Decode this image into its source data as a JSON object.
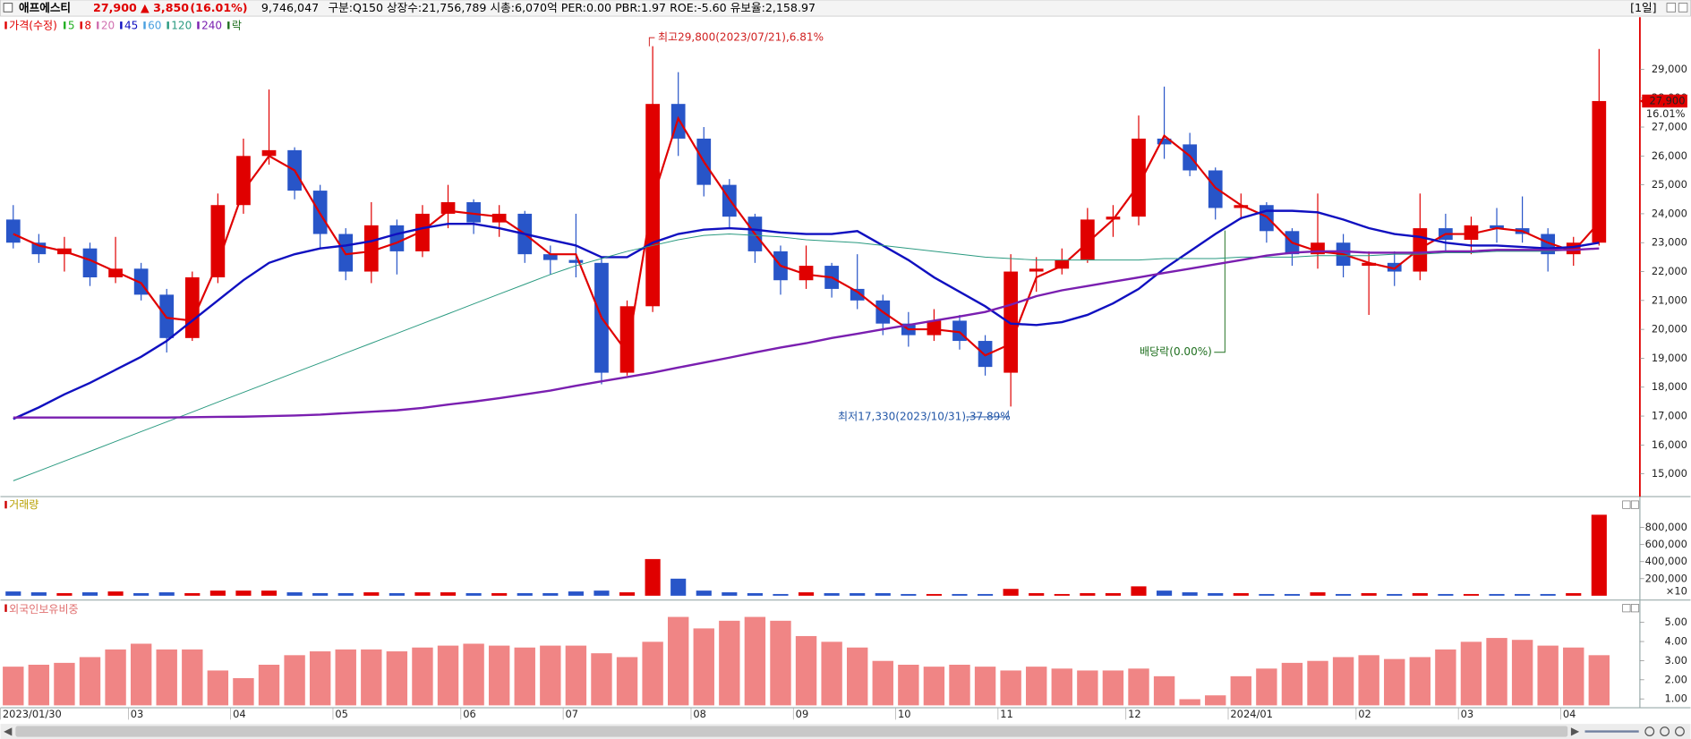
{
  "header": {
    "name": "애프에스티",
    "price": "27,900",
    "change": "▲ 3,850",
    "change_pct": "(16.01%)",
    "volume": "9,746,047",
    "info": "구분:Q150 상장수:21,756,789 시총:6,070억 PER:0.00 PBR:1.97 ROE:-5.60 유보율:2,158.97",
    "period": "[1일]"
  },
  "chart_data": {
    "type": "candlestick",
    "legend_title": "가격(수정)",
    "lock_label": "락",
    "up_color": "#e00000",
    "down_color": "#2855c8",
    "categories": [
      "2023/01/30",
      null,
      null,
      null,
      null,
      "03",
      null,
      null,
      null,
      "04",
      null,
      null,
      null,
      "05",
      null,
      null,
      null,
      null,
      "06",
      null,
      null,
      null,
      "07",
      null,
      null,
      null,
      null,
      "08",
      null,
      null,
      null,
      "09",
      null,
      null,
      null,
      "10",
      null,
      null,
      null,
      "11",
      null,
      null,
      null,
      null,
      "12",
      null,
      null,
      null,
      "2024/01",
      null,
      null,
      null,
      null,
      "02",
      null,
      null,
      null,
      "03",
      null,
      null,
      null,
      "04",
      null
    ],
    "open": [
      23800,
      23000,
      22600,
      22800,
      21800,
      22100,
      21200,
      19700,
      21800,
      24300,
      26000,
      26200,
      24800,
      23300,
      22000,
      23600,
      22700,
      24000,
      24400,
      23700,
      24000,
      22600,
      22400,
      22300,
      18500,
      20800,
      27800,
      26600,
      25000,
      23900,
      22700,
      21700,
      22200,
      21400,
      21000,
      20200,
      19800,
      20300,
      19600,
      18500,
      22000,
      22100,
      22400,
      23800,
      23900,
      26600,
      26400,
      25500,
      24200,
      24300,
      23400,
      22600,
      23000,
      22200,
      22300,
      22000,
      23500,
      23100,
      23600,
      23500,
      23300,
      22600,
      23000
    ],
    "high": [
      24300,
      23300,
      23200,
      23000,
      23200,
      22300,
      21400,
      22000,
      24700,
      26600,
      28300,
      26300,
      25000,
      23500,
      24400,
      23800,
      24300,
      25000,
      24500,
      24300,
      24100,
      22900,
      24000,
      22500,
      21000,
      29800,
      28900,
      27000,
      25200,
      24000,
      22900,
      22900,
      22300,
      22600,
      21200,
      20600,
      20700,
      20500,
      19800,
      22600,
      22500,
      22800,
      24200,
      24300,
      27400,
      28400,
      26800,
      25600,
      24700,
      24400,
      23500,
      24700,
      23300,
      22700,
      22700,
      24700,
      24000,
      23900,
      24200,
      24600,
      23500,
      23200,
      29700
    ],
    "low": [
      22800,
      22300,
      22000,
      21500,
      21600,
      21000,
      19200,
      19600,
      21600,
      24000,
      25700,
      24500,
      22800,
      21700,
      21600,
      21900,
      22500,
      23500,
      23300,
      23200,
      22300,
      21900,
      21800,
      18100,
      18400,
      20600,
      26000,
      24600,
      23500,
      22300,
      21200,
      21400,
      21100,
      20700,
      19800,
      19400,
      19600,
      19300,
      18400,
      17330,
      21300,
      21900,
      22300,
      23200,
      23600,
      25900,
      25300,
      23800,
      23800,
      23000,
      22200,
      22100,
      21800,
      20500,
      21500,
      21700,
      22700,
      22600,
      23000,
      23000,
      22000,
      22200,
      22900
    ],
    "close": [
      23000,
      22600,
      22800,
      21800,
      22100,
      21200,
      19700,
      21800,
      24300,
      26000,
      26200,
      24800,
      23300,
      22000,
      23600,
      22700,
      24000,
      24400,
      23700,
      24000,
      22600,
      22400,
      22300,
      18500,
      20800,
      27800,
      26600,
      25000,
      23900,
      22700,
      21700,
      22200,
      21400,
      21000,
      20200,
      19800,
      20300,
      19600,
      18700,
      22000,
      22100,
      22400,
      23800,
      23900,
      26600,
      26400,
      25500,
      24200,
      24300,
      23400,
      22600,
      23000,
      22200,
      22300,
      22000,
      23500,
      23100,
      23600,
      23500,
      23300,
      22600,
      23000,
      27900
    ],
    "ylim": [
      14250,
      30800
    ],
    "yticks": [
      {
        "value": 15000,
        "label": "15,000"
      },
      {
        "value": 16000,
        "label": "16,000"
      },
      {
        "value": 17000,
        "label": "17,000"
      },
      {
        "value": 18000,
        "label": "18,000"
      },
      {
        "value": 19000,
        "label": "19,000"
      },
      {
        "value": 20000,
        "label": "20,000"
      },
      {
        "value": 21000,
        "label": "21,000"
      },
      {
        "value": 22000,
        "label": "22,000"
      },
      {
        "value": 23000,
        "label": "23,000"
      },
      {
        "value": 24000,
        "label": "24,000"
      },
      {
        "value": 25000,
        "label": "25,000"
      },
      {
        "value": 26000,
        "label": "26,000"
      },
      {
        "value": 27000,
        "label": "27,000"
      },
      {
        "value": 28000,
        "label": "28,000"
      },
      {
        "value": 29000,
        "label": "29,000"
      }
    ],
    "indicators": [
      {
        "name": "5",
        "color": "#22b022"
      },
      {
        "name": "8",
        "color": "#e00000",
        "line_width": 1.8,
        "values": [
          23300,
          22900,
          22700,
          22400,
          22000,
          21600,
          20400,
          20300,
          22300,
          24800,
          26000,
          25500,
          24000,
          22600,
          22700,
          23000,
          23400,
          24100,
          24000,
          23900,
          23300,
          22600,
          22600,
          20400,
          19200,
          24500,
          27300,
          25800,
          24500,
          23300,
          22200,
          21900,
          21800,
          21300,
          20600,
          20000,
          20000,
          19900,
          19100,
          19500,
          21800,
          22200,
          23000,
          23800,
          25000,
          26700,
          26000,
          24900,
          24300,
          23900,
          23000,
          22700,
          22600,
          22300,
          22100,
          22800,
          23300,
          23300,
          23500,
          23400,
          23000,
          22700,
          23700
        ]
      },
      {
        "name": "20",
        "color": "#d070b0"
      },
      {
        "name": "45",
        "color": "#1010c0",
        "line_width": 2,
        "values": [
          16900,
          17300,
          17750,
          18150,
          18600,
          19050,
          19600,
          20300,
          21000,
          21700,
          22300,
          22600,
          22800,
          22900,
          23050,
          23300,
          23500,
          23650,
          23650,
          23500,
          23300,
          23100,
          22900,
          22500,
          22500,
          23000,
          23300,
          23450,
          23500,
          23450,
          23350,
          23300,
          23300,
          23400,
          22900,
          22400,
          21800,
          21300,
          20800,
          20200,
          20150,
          20250,
          20500,
          20900,
          21400,
          22100,
          22700,
          23300,
          23850,
          24100,
          24100,
          24050,
          23800,
          23500,
          23300,
          23200,
          23000,
          22900,
          22900,
          22850,
          22800,
          22850,
          23000
        ]
      },
      {
        "name": "60",
        "color": "#4aa0e0"
      },
      {
        "name": "120",
        "color": "#2a9a80",
        "line_width": 0.8,
        "values": [
          14760,
          15100,
          15440,
          15780,
          16120,
          16460,
          16800,
          17140,
          17480,
          17820,
          18160,
          18500,
          18840,
          19180,
          19520,
          19860,
          20200,
          20540,
          20880,
          21220,
          21560,
          21900,
          22200,
          22450,
          22700,
          22900,
          23100,
          23250,
          23300,
          23250,
          23200,
          23100,
          23050,
          23000,
          22900,
          22800,
          22700,
          22600,
          22500,
          22450,
          22400,
          22400,
          22400,
          22400,
          22400,
          22450,
          22450,
          22450,
          22500,
          22500,
          22500,
          22550,
          22550,
          22550,
          22600,
          22600,
          22650,
          22650,
          22700,
          22700,
          22700,
          22750,
          22800
        ]
      },
      {
        "name": "240",
        "color": "#7a1fb0",
        "line_width": 2,
        "values": [
          16950,
          16950,
          16950,
          16950,
          16950,
          16950,
          16950,
          16960,
          16970,
          16980,
          17000,
          17020,
          17050,
          17100,
          17150,
          17200,
          17280,
          17400,
          17500,
          17620,
          17750,
          17880,
          18050,
          18200,
          18350,
          18500,
          18680,
          18850,
          19020,
          19200,
          19370,
          19520,
          19700,
          19850,
          20000,
          20150,
          20300,
          20450,
          20600,
          20850,
          21150,
          21350,
          21500,
          21650,
          21800,
          21950,
          22100,
          22250,
          22400,
          22550,
          22650,
          22700,
          22700,
          22650,
          22650,
          22650,
          22700,
          22700,
          22750,
          22750,
          22750,
          22750,
          22800
        ]
      }
    ],
    "annotations": [
      {
        "text": "최고29,800(2023/07/21),6.81%"
      },
      {
        "text": "최저17,330(2023/10/31),37.89%"
      },
      {
        "text": "배당락(0.00%)"
      }
    ],
    "last_label": "27,900",
    "last_change": "16.01%",
    "volume": {
      "title": "거래량",
      "unit_label": "×10",
      "values": [
        50000,
        40000,
        30000,
        40000,
        50000,
        30000,
        40000,
        30000,
        60000,
        60000,
        60000,
        40000,
        30000,
        30000,
        40000,
        30000,
        40000,
        40000,
        30000,
        30000,
        30000,
        30000,
        50000,
        60000,
        40000,
        430000,
        200000,
        60000,
        40000,
        30000,
        20000,
        40000,
        30000,
        30000,
        30000,
        20000,
        20000,
        20000,
        20000,
        80000,
        30000,
        20000,
        30000,
        30000,
        110000,
        60000,
        40000,
        30000,
        30000,
        20000,
        20000,
        40000,
        20000,
        30000,
        20000,
        30000,
        20000,
        20000,
        20000,
        20000,
        20000,
        30000,
        950000
      ],
      "ylim": [
        0,
        1150000
      ],
      "yticks": [
        {
          "value": 200000,
          "label": "200,000"
        },
        {
          "value": 400000,
          "label": "400,000"
        },
        {
          "value": 600000,
          "label": "600,000"
        },
        {
          "value": 800000,
          "label": "800,000"
        }
      ]
    },
    "foreign": {
      "title": "외국인보유비중",
      "color": "#f08585",
      "values": [
        2.7,
        2.8,
        2.9,
        3.2,
        3.6,
        3.9,
        3.6,
        3.6,
        2.5,
        2.1,
        2.8,
        3.3,
        3.5,
        3.6,
        3.6,
        3.5,
        3.7,
        3.8,
        3.9,
        3.8,
        3.7,
        3.8,
        3.8,
        3.4,
        3.2,
        4.0,
        5.3,
        4.7,
        5.1,
        5.3,
        5.1,
        4.3,
        4.0,
        3.7,
        3.0,
        2.8,
        2.7,
        2.8,
        2.7,
        2.5,
        2.7,
        2.6,
        2.5,
        2.5,
        2.6,
        2.2,
        1.0,
        1.2,
        2.2,
        2.6,
        2.9,
        3.0,
        3.2,
        3.3,
        3.1,
        3.2,
        3.6,
        4.0,
        4.2,
        4.1,
        3.8,
        3.7,
        3.3
      ],
      "ylim": [
        0.65,
        6.0
      ],
      "yticks": [
        {
          "value": 1,
          "label": "1.00"
        },
        {
          "value": 2,
          "label": "2.00"
        },
        {
          "value": 3,
          "label": "3.00"
        },
        {
          "value": 4,
          "label": "4.00"
        },
        {
          "value": 5,
          "label": "5.00"
        }
      ]
    }
  }
}
